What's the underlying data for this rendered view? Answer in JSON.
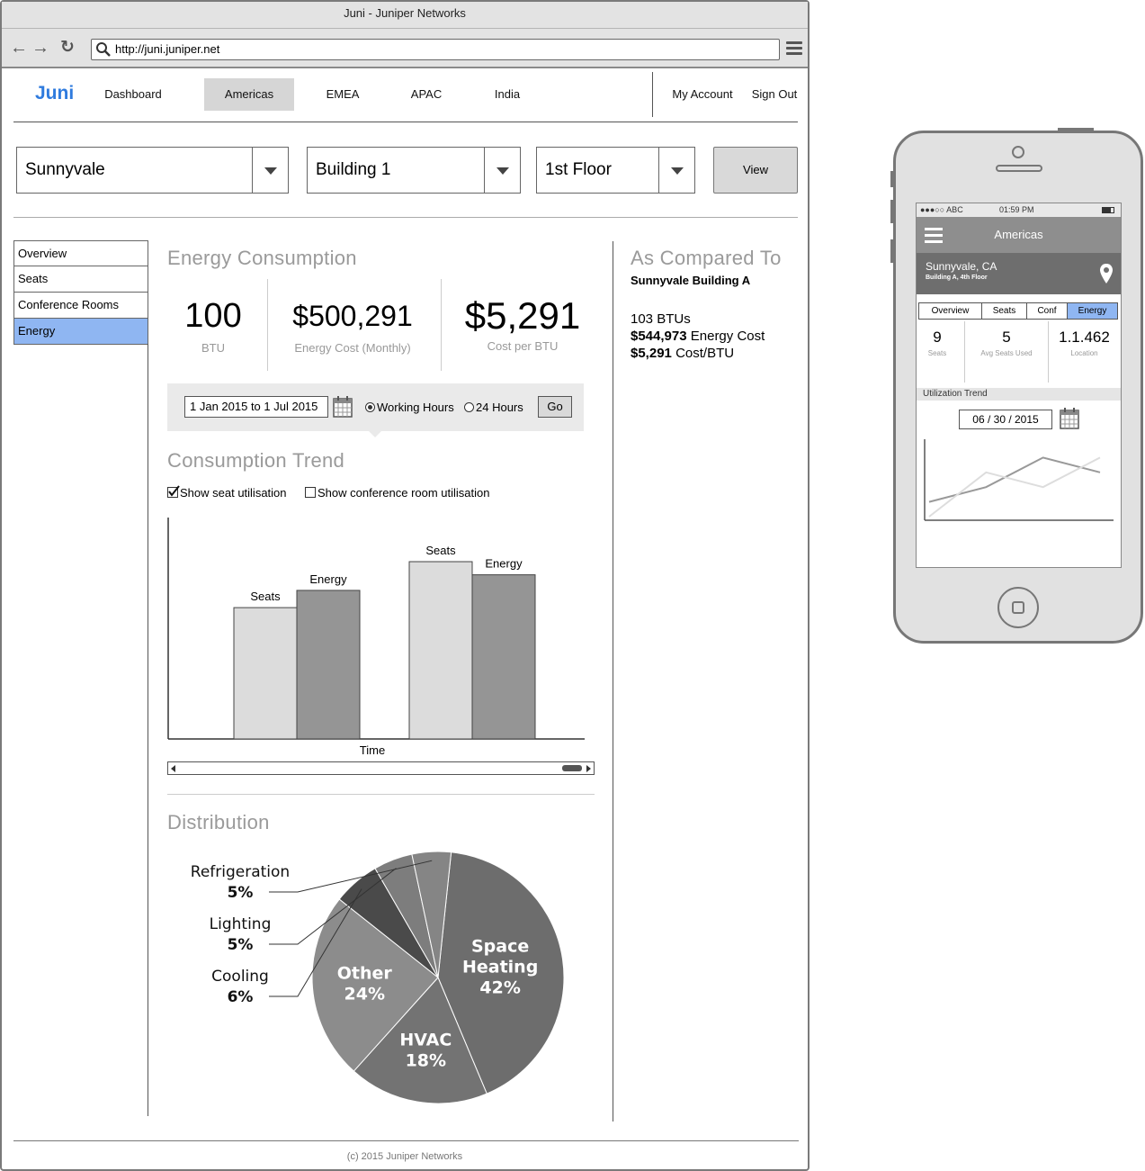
{
  "browser": {
    "title": "Juni - Juniper Networks",
    "url": "http://juni.juniper.net"
  },
  "app": {
    "logo": "Juni",
    "nav": [
      {
        "label": "Dashboard"
      },
      {
        "label": "Americas",
        "active": true
      },
      {
        "label": "EMEA"
      },
      {
        "label": "APAC"
      },
      {
        "label": "India"
      }
    ],
    "account": {
      "my_account": "My Account",
      "sign_out": "Sign Out"
    }
  },
  "filters": {
    "location": "Sunnyvale",
    "building": "Building 1",
    "floor": "1st Floor",
    "view_button": "View"
  },
  "sidebar": {
    "items": [
      {
        "label": "Overview"
      },
      {
        "label": "Seats"
      },
      {
        "label": "Conference Rooms"
      },
      {
        "label": "Energy",
        "active": true
      }
    ]
  },
  "energy": {
    "heading": "Energy Consumption",
    "stats": [
      {
        "value": "100",
        "label": "BTU"
      },
      {
        "value": "$500,291",
        "label": "Energy Cost (Monthly)"
      },
      {
        "value": "$5,291",
        "label": "Cost per BTU"
      }
    ],
    "date_range": "1 Jan 2015 to 1 Jul 2015",
    "radio_working": "Working Hours",
    "radio_24": "24 Hours",
    "go_button": "Go"
  },
  "trend": {
    "heading": "Consumption Trend",
    "show_seat": "Show seat utilisation",
    "show_seat_checked": true,
    "show_conf": "Show conference room utilisation",
    "show_conf_checked": false
  },
  "distribution": {
    "heading": "Distribution"
  },
  "compare": {
    "heading": "As Compared To",
    "subject": "Sunnyvale Building A",
    "btus": "103 BTUs",
    "cost_value": "$544,973",
    "cost_label": "Energy Cost",
    "per_btu_value": "$5,291",
    "per_btu_label": "Cost/BTU"
  },
  "footer": "(c) 2015 Juniper Networks",
  "chart_data": [
    {
      "type": "bar",
      "xlabel": "Time",
      "ylabel": "",
      "groups": [
        {
          "bars": [
            {
              "label": "Seats",
              "value": 160,
              "color": "#dcdcdc"
            },
            {
              "label": "Energy",
              "value": 181,
              "color": "#959595"
            }
          ]
        },
        {
          "bars": [
            {
              "label": "Seats",
              "value": 216,
              "color": "#dcdcdc"
            },
            {
              "label": "Energy",
              "value": 200,
              "color": "#959595"
            }
          ]
        }
      ],
      "ylim": [
        0,
        250
      ]
    },
    {
      "type": "pie",
      "slices": [
        {
          "label": "Space Heating",
          "value": 42,
          "display": "42%",
          "color": "#6d6d6d",
          "label_inside": true
        },
        {
          "label": "HVAC",
          "value": 18,
          "display": "18%",
          "color": "#737373",
          "label_inside": true
        },
        {
          "label": "Other",
          "value": 24,
          "display": "24%",
          "color": "#8c8c8c",
          "label_inside": true
        },
        {
          "label": "Cooling",
          "value": 6,
          "display": "6%",
          "color": "#4a4a4a",
          "label_inside": false
        },
        {
          "label": "Lighting",
          "value": 5,
          "display": "5%",
          "color": "#7d7d7d",
          "label_inside": false
        },
        {
          "label": "Refrigeration",
          "value": 5,
          "display": "5%",
          "color": "#858585",
          "label_inside": false
        }
      ]
    },
    {
      "type": "line",
      "series": [
        {
          "values": [
            1,
            2,
            4,
            3
          ],
          "color": "#999999"
        },
        {
          "values": [
            0,
            3,
            2,
            4
          ],
          "color": "#dddddd"
        }
      ],
      "ylim": [
        0,
        5
      ]
    }
  ],
  "phone": {
    "carrier": "●●●○○ ABC",
    "time": "01:59 PM",
    "header": "Americas",
    "location": "Sunnyvale, CA",
    "sublocation": "Building A, 4th Floor",
    "tabs": [
      {
        "label": "Overview"
      },
      {
        "label": "Seats"
      },
      {
        "label": "Conf"
      },
      {
        "label": "Energy",
        "active": true
      }
    ],
    "stats": [
      {
        "value": "9",
        "label": "Seats"
      },
      {
        "value": "5",
        "label": "Avg Seats Used"
      },
      {
        "value": "1.1.462",
        "label": "Location"
      }
    ],
    "trend_label": "Utilization Trend",
    "date": "06 / 30 / 2015"
  }
}
